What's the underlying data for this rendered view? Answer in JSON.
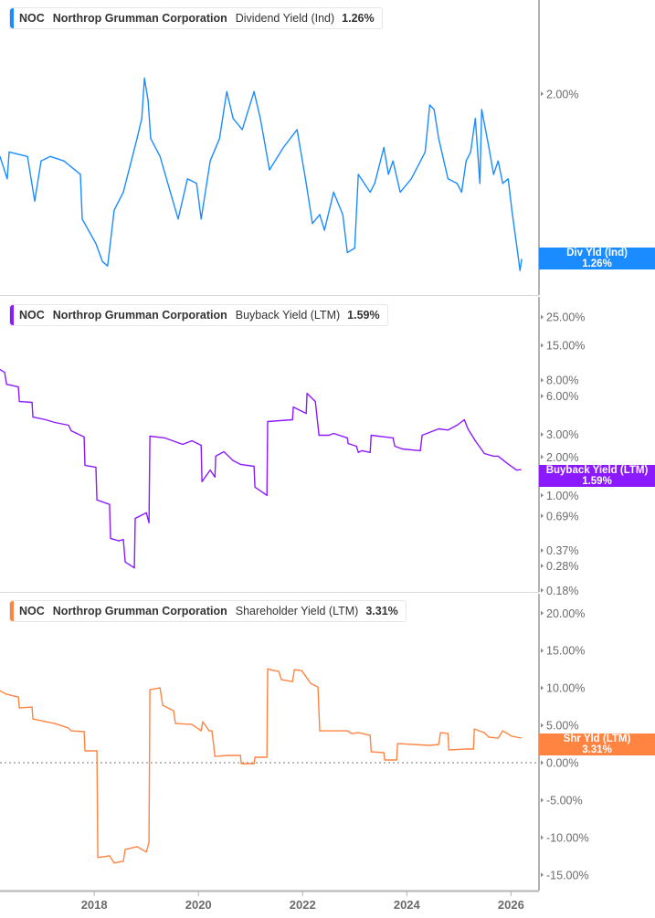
{
  "panels": [
    {
      "ticker": "NOC",
      "company": "Northrop Grumman Corporation",
      "metric": "Dividend Yield (Ind)",
      "value": "1.26%",
      "label_title": "Div Yld (Ind)",
      "label_value": "1.26%",
      "color": "#1a8cff"
    },
    {
      "ticker": "NOC",
      "company": "Northrop Grumman Corporation",
      "metric": "Buyback Yield (LTM)",
      "value": "1.59%",
      "label_title": "Buyback Yield (LTM)",
      "label_value": "1.59%",
      "color": "#8c1aff"
    },
    {
      "ticker": "NOC",
      "company": "Northrop Grumman Corporation",
      "metric": "Shareholder Yield (LTM)",
      "value": "3.31%",
      "label_title": "Shr Yld (LTM)",
      "label_value": "3.31%",
      "color": "#ff8442"
    }
  ],
  "chart_data": [
    {
      "type": "line",
      "series": [
        {
          "name": "Dividend Yield (Ind)",
          "color": "#1a8cff",
          "points": [
            [
              "2016-03-11",
              1.72
            ],
            [
              "2016-05-01",
              1.62
            ],
            [
              "2016-05-14",
              1.74
            ],
            [
              "2016-09-20",
              1.72
            ],
            [
              "2016-11-10",
              1.52
            ],
            [
              "2016-12-25",
              1.7
            ],
            [
              "2017-02-27",
              1.72
            ],
            [
              "2017-06-03",
              1.7
            ],
            [
              "2017-09-26",
              1.64
            ],
            [
              "2017-10-09",
              1.44
            ],
            [
              "2018-01-13",
              1.33
            ],
            [
              "2018-02-27",
              1.25
            ],
            [
              "2018-04-05",
              1.23
            ],
            [
              "2018-05-21",
              1.48
            ],
            [
              "2018-07-24",
              1.56
            ],
            [
              "2018-10-28",
              1.8
            ],
            [
              "2018-11-30",
              1.89
            ],
            [
              "2018-12-19",
              2.07
            ],
            [
              "2019-01-13",
              1.97
            ],
            [
              "2019-02-01",
              1.8
            ],
            [
              "2019-04-07",
              1.72
            ],
            [
              "2019-08-12",
              1.44
            ],
            [
              "2019-10-16",
              1.62
            ],
            [
              "2019-12-19",
              1.6
            ],
            [
              "2020-01-20",
              1.44
            ],
            [
              "2020-03-24",
              1.7
            ],
            [
              "2020-05-28",
              1.8
            ],
            [
              "2020-07-18",
              2.01
            ],
            [
              "2020-09-01",
              1.89
            ],
            [
              "2020-11-04",
              1.84
            ],
            [
              "2021-01-26",
              2.01
            ],
            [
              "2021-03-11",
              1.89
            ],
            [
              "2021-05-14",
              1.66
            ],
            [
              "2021-08-19",
              1.76
            ],
            [
              "2021-11-23",
              1.84
            ],
            [
              "2022-01-26",
              1.6
            ],
            [
              "2022-03-11",
              1.42
            ],
            [
              "2022-05-01",
              1.46
            ],
            [
              "2022-06-03",
              1.39
            ],
            [
              "2022-08-06",
              1.56
            ],
            [
              "2022-10-09",
              1.46
            ],
            [
              "2022-11-10",
              1.29
            ],
            [
              "2023-01-01",
              1.31
            ],
            [
              "2023-01-26",
              1.64
            ],
            [
              "2023-04-19",
              1.56
            ],
            [
              "2023-05-21",
              1.6
            ],
            [
              "2023-07-24",
              1.76
            ],
            [
              "2023-08-25",
              1.64
            ],
            [
              "2023-09-26",
              1.7
            ],
            [
              "2023-11-16",
              1.56
            ],
            [
              "2024-02-01",
              1.62
            ],
            [
              "2024-05-09",
              1.74
            ],
            [
              "2024-06-10",
              1.95
            ],
            [
              "2024-07-11",
              1.93
            ],
            [
              "2024-08-12",
              1.8
            ],
            [
              "2024-10-16",
              1.62
            ],
            [
              "2024-12-19",
              1.6
            ],
            [
              "2025-01-20",
              1.56
            ],
            [
              "2025-02-21",
              1.7
            ],
            [
              "2025-03-24",
              1.74
            ],
            [
              "2025-04-26",
              1.89
            ],
            [
              "2025-05-28",
              1.6
            ],
            [
              "2025-06-10",
              1.93
            ],
            [
              "2025-07-30",
              1.76
            ],
            [
              "2025-09-01",
              1.64
            ],
            [
              "2025-10-03",
              1.7
            ],
            [
              "2025-11-04",
              1.6
            ],
            [
              "2025-12-12",
              1.62
            ],
            [
              "2026-01-07",
              1.48
            ],
            [
              "2026-01-26",
              1.39
            ],
            [
              "2026-02-21",
              1.27
            ],
            [
              "2026-03-05",
              1.21
            ],
            [
              "2026-03-17",
              1.26
            ]
          ]
        }
      ],
      "y_scale": "linear",
      "ylim": [
        1.1,
        2.42
      ],
      "y_ticks": [
        {
          "value": 2.0,
          "label": "2.00%"
        }
      ]
    },
    {
      "type": "line",
      "series": [
        {
          "name": "Buyback Yield (LTM)",
          "color": "#8c1aff",
          "points": [
            [
              "2016-03-11",
              9.68
            ],
            [
              "2016-04-13",
              9.21
            ],
            [
              "2016-04-26",
              7.43
            ],
            [
              "2016-07-18",
              7.08
            ],
            [
              "2016-07-25",
              5.44
            ],
            [
              "2016-10-22",
              5.36
            ],
            [
              "2016-10-28",
              4.11
            ],
            [
              "2017-01-26",
              3.92
            ],
            [
              "2017-03-31",
              3.73
            ],
            [
              "2017-07-05",
              3.55
            ],
            [
              "2017-07-24",
              3.21
            ],
            [
              "2017-10-22",
              2.87
            ],
            [
              "2017-10-28",
              1.72
            ],
            [
              "2018-01-13",
              1.66
            ],
            [
              "2018-01-20",
              0.92
            ],
            [
              "2018-04-18",
              0.85
            ],
            [
              "2018-04-25",
              0.46
            ],
            [
              "2018-06-22",
              0.44
            ],
            [
              "2018-07-24",
              0.45
            ],
            [
              "2018-08-06",
              0.3
            ],
            [
              "2018-10-09",
              0.27
            ],
            [
              "2018-10-15",
              0.66
            ],
            [
              "2019-01-01",
              0.73
            ],
            [
              "2019-01-20",
              0.61
            ],
            [
              "2019-01-26",
              2.91
            ],
            [
              "2019-05-09",
              2.82
            ],
            [
              "2019-09-13",
              2.51
            ],
            [
              "2019-11-16",
              2.68
            ],
            [
              "2020-01-20",
              2.47
            ],
            [
              "2020-01-26",
              1.28
            ],
            [
              "2020-03-24",
              1.58
            ],
            [
              "2020-04-26",
              1.39
            ],
            [
              "2020-05-01",
              2.03
            ],
            [
              "2020-06-28",
              2.2
            ],
            [
              "2020-09-01",
              1.87
            ],
            [
              "2020-10-22",
              1.75
            ],
            [
              "2021-01-26",
              1.69
            ],
            [
              "2021-02-01",
              1.16
            ],
            [
              "2021-04-26",
              1.0
            ],
            [
              "2021-05-01",
              3.79
            ],
            [
              "2021-10-22",
              3.92
            ],
            [
              "2021-10-28",
              4.93
            ],
            [
              "2022-01-26",
              4.39
            ],
            [
              "2022-02-01",
              6.31
            ],
            [
              "2022-03-31",
              5.44
            ],
            [
              "2022-04-26",
              2.96
            ],
            [
              "2022-07-05",
              2.96
            ],
            [
              "2022-08-06",
              3.06
            ],
            [
              "2022-11-10",
              2.82
            ],
            [
              "2022-11-16",
              2.55
            ],
            [
              "2023-01-13",
              2.43
            ],
            [
              "2023-01-26",
              2.17
            ],
            [
              "2023-02-21",
              2.24
            ],
            [
              "2023-04-19",
              2.17
            ],
            [
              "2023-04-26",
              2.96
            ],
            [
              "2023-09-26",
              2.82
            ],
            [
              "2023-10-09",
              2.43
            ],
            [
              "2023-11-30",
              2.31
            ],
            [
              "2024-04-05",
              2.24
            ],
            [
              "2024-04-18",
              2.96
            ],
            [
              "2024-08-12",
              3.32
            ],
            [
              "2024-10-16",
              3.25
            ],
            [
              "2024-12-19",
              3.55
            ],
            [
              "2025-02-08",
              3.92
            ],
            [
              "2025-03-05",
              3.32
            ],
            [
              "2025-04-26",
              2.68
            ],
            [
              "2025-06-28",
              2.13
            ],
            [
              "2025-09-01",
              2.03
            ],
            [
              "2025-10-03",
              2.03
            ],
            [
              "2025-12-06",
              1.78
            ],
            [
              "2026-02-08",
              1.58
            ],
            [
              "2026-03-11",
              1.59
            ]
          ]
        }
      ],
      "y_scale": "log",
      "ylim": [
        0.175,
        36
      ],
      "y_ticks": [
        {
          "value": 25,
          "label": "25.00%"
        },
        {
          "value": 15,
          "label": "15.00%"
        },
        {
          "value": 8,
          "label": "8.00%"
        },
        {
          "value": 6,
          "label": "6.00%"
        },
        {
          "value": 3,
          "label": "3.00%"
        },
        {
          "value": 2,
          "label": "2.00%"
        },
        {
          "value": 1,
          "label": "1.00%"
        },
        {
          "value": 0.69,
          "label": "0.69%"
        },
        {
          "value": 0.37,
          "label": "0.37%"
        },
        {
          "value": 0.28,
          "label": "0.28%"
        },
        {
          "value": 0.18,
          "label": "0.18%"
        }
      ]
    },
    {
      "type": "line",
      "series": [
        {
          "name": "Shareholder Yield (LTM)",
          "color": "#ff8442",
          "points": [
            [
              "2016-03-11",
              9.63
            ],
            [
              "2016-04-26",
              9.15
            ],
            [
              "2016-07-18",
              8.78
            ],
            [
              "2016-07-25",
              7.32
            ],
            [
              "2016-10-22",
              7.44
            ],
            [
              "2016-10-28",
              5.85
            ],
            [
              "2017-01-26",
              5.49
            ],
            [
              "2017-03-31",
              5.24
            ],
            [
              "2017-07-05",
              4.63
            ],
            [
              "2017-07-24",
              4.27
            ],
            [
              "2017-10-22",
              4.15
            ],
            [
              "2017-10-28",
              1.59
            ],
            [
              "2018-01-20",
              1.59
            ],
            [
              "2018-01-26",
              -12.68
            ],
            [
              "2018-04-18",
              -12.44
            ],
            [
              "2018-05-21",
              -13.41
            ],
            [
              "2018-07-24",
              -13.17
            ],
            [
              "2018-08-06",
              -11.59
            ],
            [
              "2018-10-28",
              -11.22
            ],
            [
              "2019-01-01",
              -11.95
            ],
            [
              "2019-01-20",
              -10.61
            ],
            [
              "2019-01-26",
              9.76
            ],
            [
              "2019-04-07",
              10.0
            ],
            [
              "2019-04-26",
              7.68
            ],
            [
              "2019-07-11",
              6.95
            ],
            [
              "2019-07-24",
              5.24
            ],
            [
              "2019-11-16",
              5.12
            ],
            [
              "2020-01-20",
              4.27
            ],
            [
              "2020-02-01",
              5.49
            ],
            [
              "2020-03-17",
              4.27
            ],
            [
              "2020-04-05",
              4.27
            ],
            [
              "2020-04-26",
              0.85
            ],
            [
              "2020-07-30",
              0.98
            ],
            [
              "2020-10-22",
              0.98
            ],
            [
              "2020-10-28",
              -0.12
            ],
            [
              "2021-01-26",
              -0.12
            ],
            [
              "2021-02-01",
              0.73
            ],
            [
              "2021-04-26",
              0.73
            ],
            [
              "2021-05-01",
              12.56
            ],
            [
              "2021-06-16",
              12.32
            ],
            [
              "2021-07-18",
              12.2
            ],
            [
              "2021-08-06",
              11.1
            ],
            [
              "2021-10-22",
              10.85
            ],
            [
              "2021-11-04",
              12.44
            ],
            [
              "2021-12-25",
              12.32
            ],
            [
              "2022-02-27",
              10.61
            ],
            [
              "2022-04-19",
              10.12
            ],
            [
              "2022-05-01",
              4.27
            ],
            [
              "2022-11-10",
              4.27
            ],
            [
              "2022-12-12",
              3.9
            ],
            [
              "2023-01-26",
              4.02
            ],
            [
              "2023-04-19",
              3.66
            ],
            [
              "2023-04-26",
              1.46
            ],
            [
              "2023-07-24",
              1.34
            ],
            [
              "2023-07-30",
              0.37
            ],
            [
              "2023-10-22",
              0.37
            ],
            [
              "2023-10-28",
              2.56
            ],
            [
              "2024-06-10",
              2.32
            ],
            [
              "2024-08-12",
              2.44
            ],
            [
              "2024-08-25",
              4.02
            ],
            [
              "2024-10-16",
              3.9
            ],
            [
              "2024-10-22",
              1.71
            ],
            [
              "2025-02-21",
              1.83
            ],
            [
              "2025-04-13",
              1.83
            ],
            [
              "2025-04-19",
              4.51
            ],
            [
              "2025-06-28",
              4.02
            ],
            [
              "2025-07-30",
              3.41
            ],
            [
              "2025-10-03",
              3.29
            ],
            [
              "2025-11-04",
              4.27
            ],
            [
              "2026-01-07",
              3.54
            ],
            [
              "2026-03-11",
              3.31
            ]
          ]
        }
      ],
      "y_scale": "linear",
      "ylim": [
        -17.1,
        22.6
      ],
      "zero_line": true,
      "y_ticks": [
        {
          "value": 20,
          "label": "20.00%"
        },
        {
          "value": 15,
          "label": "15.00%"
        },
        {
          "value": 10,
          "label": "10.00%"
        },
        {
          "value": 5,
          "label": "5.00%"
        },
        {
          "value": 0,
          "label": "0.00%"
        },
        {
          "value": -5,
          "label": "-5.00%"
        },
        {
          "value": -10,
          "label": "-10.00%"
        },
        {
          "value": -15,
          "label": "-15.00%"
        }
      ]
    }
  ],
  "x_axis": {
    "xlim": [
      "2016-03-11",
      "2026-07-16"
    ],
    "ticks": [
      "2018",
      "2020",
      "2022",
      "2024",
      "2026"
    ]
  }
}
